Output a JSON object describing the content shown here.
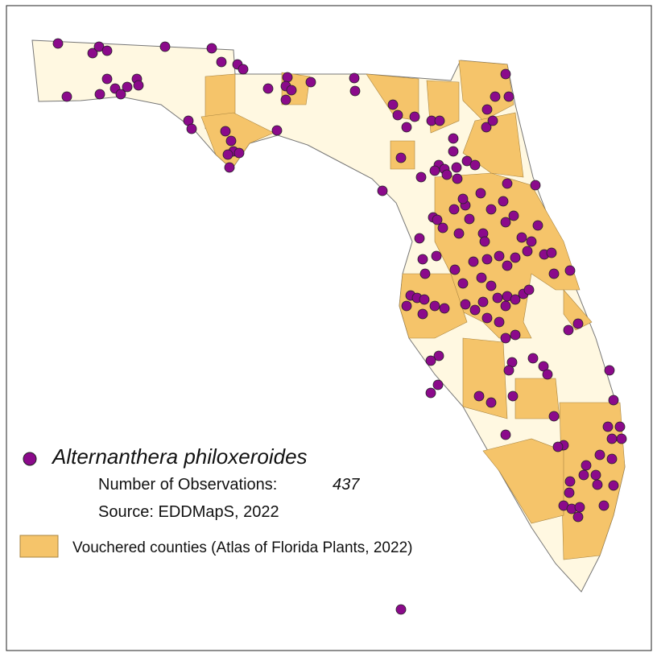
{
  "legend": {
    "species": "Alternanthera philoxeroides",
    "observations_label": "Number of Observations:",
    "observations_count": 437,
    "source": "Source: EDDMapS, 2022",
    "vouchered": "Vouchered counties (Atlas of Florida Plants, 2022)"
  }
}
